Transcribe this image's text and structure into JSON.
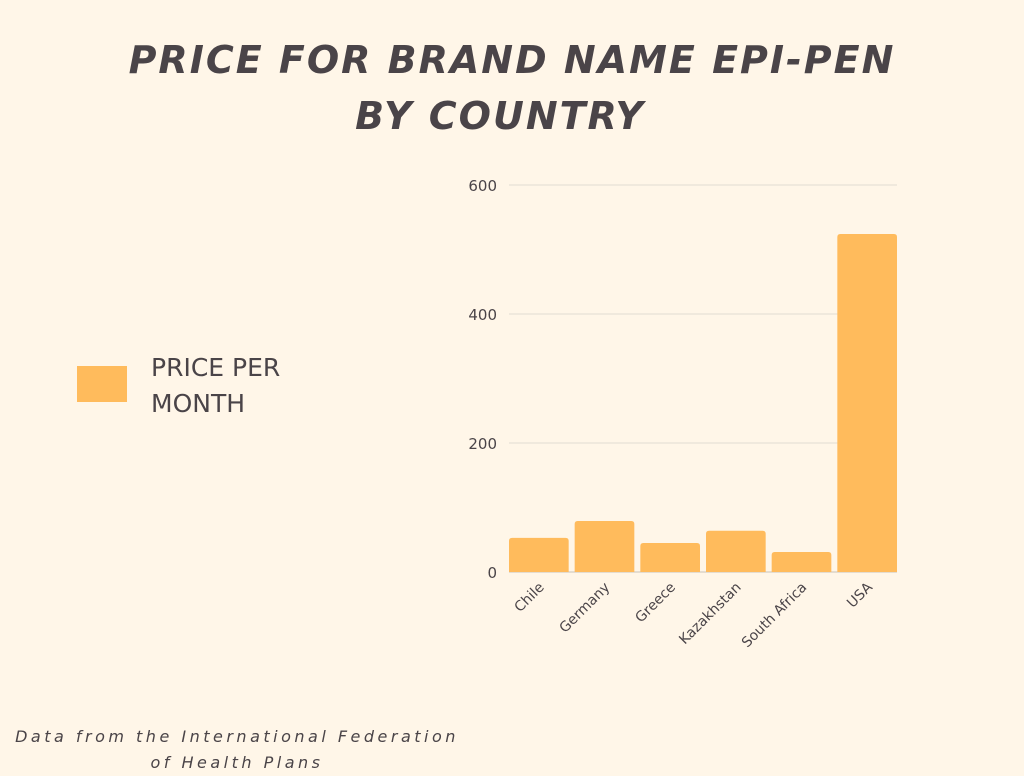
{
  "chart_data": {
    "type": "bar",
    "title_line1": "PRICE FOR BRAND NAME EPI-PEN",
    "title_line2": "BY COUNTRY",
    "categories": [
      "Chile",
      "Germany",
      "Greece",
      "Kazakhstan",
      "South Africa",
      "USA"
    ],
    "series": [
      {
        "name": "PRICE PER MONTH",
        "values": [
          53,
          79,
          45,
          64,
          31,
          524
        ]
      }
    ],
    "xlabel": "",
    "ylabel": "",
    "ylim": [
      0,
      600
    ],
    "yticks": [
      0,
      200,
      400,
      600
    ],
    "grid": true,
    "legend_position": "left",
    "source": "Data from the International Federation of Health Plans"
  },
  "colors": {
    "bar": "#ffbb5c",
    "text": "#4a4448",
    "grid": "#e2dcd2",
    "background": "#fff6e8"
  }
}
